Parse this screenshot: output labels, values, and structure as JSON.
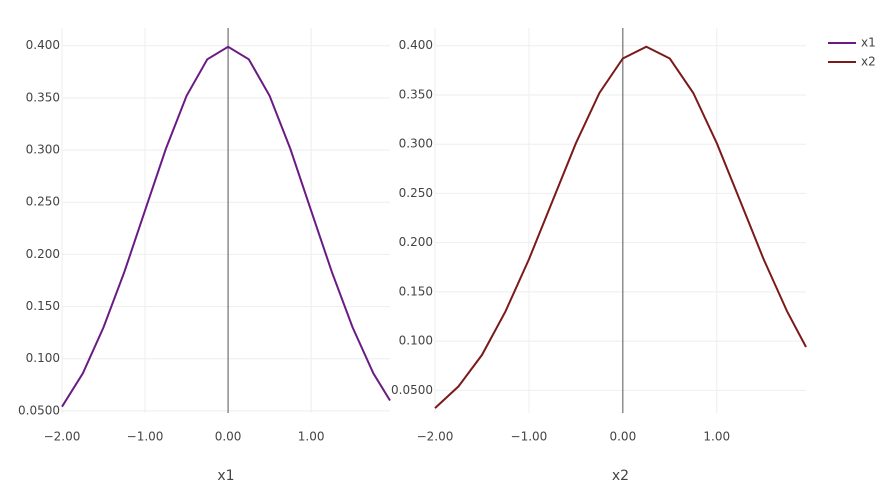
{
  "chart_data": [
    {
      "type": "line",
      "xlabel": "x1",
      "x": [
        -2,
        -1.75,
        -1.5,
        -1.25,
        -1,
        -0.75,
        -0.5,
        -0.25,
        0,
        0.25,
        0.5,
        0.75,
        1,
        1.25,
        1.5,
        1.75,
        1.95
      ],
      "series": [
        {
          "name": "x1",
          "color": "#6a1b83",
          "values": [
            0.054,
            0.086,
            0.13,
            0.183,
            0.242,
            0.301,
            0.352,
            0.387,
            0.399,
            0.387,
            0.352,
            0.301,
            0.242,
            0.183,
            0.13,
            0.086,
            0.06
          ]
        }
      ],
      "xlim": [
        -2,
        1.95
      ],
      "ylim": [
        0.048,
        0.417
      ],
      "xticks": [
        {
          "value": -2,
          "label": "−2.00"
        },
        {
          "value": -1,
          "label": "−1.00"
        },
        {
          "value": 0,
          "label": "0.00"
        },
        {
          "value": 1,
          "label": "1.00"
        }
      ],
      "yticks": [
        {
          "value": 0.05,
          "label": "0.0500"
        },
        {
          "value": 0.1,
          "label": "0.100"
        },
        {
          "value": 0.15,
          "label": "0.150"
        },
        {
          "value": 0.2,
          "label": "0.200"
        },
        {
          "value": 0.25,
          "label": "0.250"
        },
        {
          "value": 0.3,
          "label": "0.300"
        },
        {
          "value": 0.35,
          "label": "0.350"
        },
        {
          "value": 0.4,
          "label": "0.400"
        }
      ],
      "grid": true
    },
    {
      "type": "line",
      "xlabel": "x2",
      "x": [
        -2,
        -1.75,
        -1.5,
        -1.25,
        -1,
        -0.75,
        -0.5,
        -0.25,
        0,
        0.25,
        0.5,
        0.75,
        1,
        1.25,
        1.5,
        1.75,
        1.95
      ],
      "series": [
        {
          "name": "x2",
          "color": "#7b1a1a",
          "values": [
            0.032,
            0.054,
            0.086,
            0.13,
            0.183,
            0.242,
            0.301,
            0.352,
            0.387,
            0.399,
            0.387,
            0.352,
            0.301,
            0.242,
            0.183,
            0.13,
            0.094
          ]
        }
      ],
      "xlim": [
        -2,
        1.95
      ],
      "ylim": [
        0.027,
        0.418
      ],
      "xticks": [
        {
          "value": -2,
          "label": "−2.00"
        },
        {
          "value": -1,
          "label": "−1.00"
        },
        {
          "value": 0,
          "label": "0.00"
        },
        {
          "value": 1,
          "label": "1.00"
        }
      ],
      "yticks": [
        {
          "value": 0.05,
          "label": "0.0500"
        },
        {
          "value": 0.1,
          "label": "0.100"
        },
        {
          "value": 0.15,
          "label": "0.150"
        },
        {
          "value": 0.2,
          "label": "0.200"
        },
        {
          "value": 0.25,
          "label": "0.250"
        },
        {
          "value": 0.3,
          "label": "0.300"
        },
        {
          "value": 0.35,
          "label": "0.350"
        },
        {
          "value": 0.4,
          "label": "0.400"
        }
      ],
      "grid": true
    }
  ]
}
